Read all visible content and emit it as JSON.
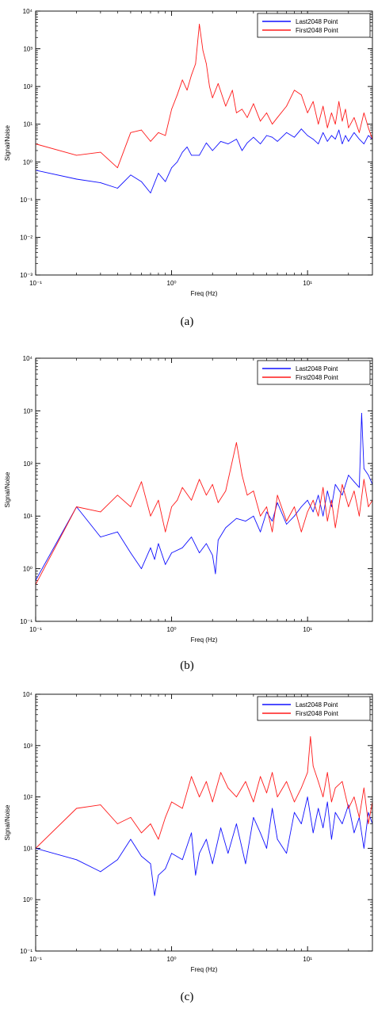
{
  "colors": {
    "series_1": "#1010ff",
    "series_2": "#ff1a1a",
    "axis": "#000000"
  },
  "panels": [
    {
      "caption": "(a)"
    },
    {
      "caption": "(b)"
    },
    {
      "caption": "(c)"
    }
  ],
  "chart_data": [
    {
      "type": "line",
      "xlabel": "Freq (Hz)",
      "ylabel": "Signal/Noise",
      "xscale": "log",
      "yscale": "log",
      "xlim": [
        0.1,
        30
      ],
      "ylim": [
        0.001,
        10000
      ],
      "xticks": [
        {
          "value": 0.1,
          "label": "10⁻¹"
        },
        {
          "value": 1,
          "label": "10⁰"
        },
        {
          "value": 10,
          "label": "10¹"
        }
      ],
      "yticks": [
        {
          "value": 0.001,
          "label": "10⁻³"
        },
        {
          "value": 0.01,
          "label": "10⁻²"
        },
        {
          "value": 0.1,
          "label": "10⁻¹"
        },
        {
          "value": 1,
          "label": "10⁰"
        },
        {
          "value": 10,
          "label": "10¹"
        },
        {
          "value": 100,
          "label": "10²"
        },
        {
          "value": 1000,
          "label": "10³"
        },
        {
          "value": 10000,
          "label": "10⁴"
        }
      ],
      "legend_position": "top-right",
      "series": [
        {
          "name": "Last2048  Point",
          "x": [
            0.1,
            0.2,
            0.3,
            0.4,
            0.5,
            0.6,
            0.7,
            0.8,
            0.9,
            1.0,
            1.1,
            1.2,
            1.3,
            1.4,
            1.6,
            1.8,
            2.0,
            2.3,
            2.6,
            3.0,
            3.3,
            3.6,
            4.0,
            4.5,
            5.0,
            5.5,
            6.0,
            7.0,
            8.0,
            9.0,
            10,
            11,
            12,
            13,
            14,
            15,
            16,
            17,
            18,
            19,
            20,
            22,
            24,
            26,
            28,
            30
          ],
          "y": [
            0.6,
            0.35,
            0.28,
            0.2,
            0.45,
            0.3,
            0.15,
            0.5,
            0.3,
            0.7,
            1.0,
            1.8,
            2.5,
            1.5,
            1.5,
            3.2,
            2.0,
            3.5,
            3.0,
            4.0,
            2.0,
            3.2,
            4.5,
            3.0,
            5.0,
            4.5,
            3.5,
            6.0,
            4.5,
            7.5,
            5.0,
            4.0,
            3.0,
            6.0,
            3.5,
            5.0,
            4.0,
            7.0,
            3.0,
            5.0,
            3.5,
            6.0,
            4.0,
            3.0,
            5.0,
            4.0
          ]
        },
        {
          "name": "First2048  Point",
          "x": [
            0.1,
            0.2,
            0.3,
            0.4,
            0.5,
            0.6,
            0.7,
            0.8,
            0.9,
            1.0,
            1.1,
            1.2,
            1.3,
            1.4,
            1.5,
            1.6,
            1.7,
            1.8,
            1.9,
            2.0,
            2.2,
            2.5,
            2.8,
            3.0,
            3.3,
            3.6,
            4.0,
            4.5,
            5.0,
            5.5,
            6.0,
            7.0,
            8.0,
            9.0,
            10,
            11,
            12,
            13,
            14,
            15,
            16,
            17,
            18,
            19,
            20,
            22,
            24,
            26,
            28,
            30
          ],
          "y": [
            3.0,
            1.5,
            1.8,
            0.7,
            6.0,
            7.0,
            3.5,
            6.0,
            5.0,
            25,
            60,
            150,
            80,
            200,
            400,
            4500,
            900,
            400,
            100,
            50,
            120,
            30,
            80,
            20,
            25,
            15,
            35,
            12,
            20,
            10,
            15,
            30,
            80,
            60,
            20,
            40,
            10,
            30,
            8,
            20,
            10,
            40,
            12,
            25,
            8,
            15,
            6,
            20,
            8,
            4
          ]
        }
      ]
    },
    {
      "type": "line",
      "xlabel": "Freq (Hz)",
      "ylabel": "Signal/Noise",
      "xscale": "log",
      "yscale": "log",
      "xlim": [
        0.1,
        30
      ],
      "ylim": [
        0.1,
        10000
      ],
      "xticks": [
        {
          "value": 0.1,
          "label": "10⁻¹"
        },
        {
          "value": 1,
          "label": "10⁰"
        },
        {
          "value": 10,
          "label": "10¹"
        }
      ],
      "yticks": [
        {
          "value": 0.1,
          "label": "10⁻¹"
        },
        {
          "value": 1,
          "label": "10⁰"
        },
        {
          "value": 10,
          "label": "10¹"
        },
        {
          "value": 100,
          "label": "10²"
        },
        {
          "value": 1000,
          "label": "10³"
        },
        {
          "value": 10000,
          "label": "10⁴"
        }
      ],
      "legend_position": "top-right",
      "series": [
        {
          "name": "Last2048  Point",
          "x": [
            0.1,
            0.2,
            0.3,
            0.4,
            0.5,
            0.6,
            0.7,
            0.75,
            0.8,
            0.9,
            1.0,
            1.2,
            1.4,
            1.6,
            1.8,
            2.0,
            2.1,
            2.2,
            2.5,
            3.0,
            3.5,
            4.0,
            4.5,
            5.0,
            5.5,
            6.0,
            7.0,
            8.0,
            9.0,
            10,
            11,
            12,
            13,
            14,
            15,
            16,
            18,
            20,
            22,
            24,
            25,
            26,
            28,
            30
          ],
          "y": [
            0.6,
            15,
            4,
            5,
            2,
            1,
            2.5,
            1.5,
            3,
            1.2,
            2,
            2.5,
            4,
            2,
            3,
            1.8,
            0.8,
            3.5,
            6,
            9,
            8,
            10,
            5,
            12,
            8,
            18,
            7,
            10,
            15,
            20,
            12,
            25,
            10,
            30,
            15,
            40,
            25,
            60,
            45,
            35,
            900,
            80,
            60,
            40
          ]
        },
        {
          "name": "First2048  Point",
          "x": [
            0.1,
            0.2,
            0.3,
            0.4,
            0.5,
            0.6,
            0.7,
            0.8,
            0.9,
            1.0,
            1.1,
            1.2,
            1.4,
            1.6,
            1.8,
            2.0,
            2.2,
            2.5,
            3.0,
            3.3,
            3.6,
            4.0,
            4.5,
            5.0,
            5.5,
            6.0,
            7.0,
            8.0,
            9.0,
            10,
            11,
            12,
            13,
            14,
            15,
            16,
            18,
            20,
            22,
            24,
            26,
            28,
            30
          ],
          "y": [
            0.5,
            15,
            12,
            25,
            15,
            45,
            10,
            20,
            5,
            15,
            20,
            35,
            20,
            50,
            25,
            40,
            18,
            30,
            250,
            60,
            25,
            30,
            10,
            15,
            5,
            25,
            8,
            15,
            5,
            12,
            20,
            10,
            35,
            8,
            20,
            6,
            40,
            15,
            30,
            10,
            50,
            15,
            20
          ]
        }
      ]
    },
    {
      "type": "line",
      "xlabel": "Freq (Hz)",
      "ylabel": "Signal/Noise",
      "xscale": "log",
      "yscale": "log",
      "xlim": [
        0.1,
        30
      ],
      "ylim": [
        0.1,
        10000
      ],
      "xticks": [
        {
          "value": 0.1,
          "label": "10⁻¹"
        },
        {
          "value": 1,
          "label": "10⁰"
        },
        {
          "value": 10,
          "label": "10¹"
        }
      ],
      "yticks": [
        {
          "value": 0.1,
          "label": "10⁻¹"
        },
        {
          "value": 1,
          "label": "10⁰"
        },
        {
          "value": 10,
          "label": "10¹"
        },
        {
          "value": 100,
          "label": "10²"
        },
        {
          "value": 1000,
          "label": "10³"
        },
        {
          "value": 10000,
          "label": "10⁴"
        }
      ],
      "legend_position": "top-right",
      "series": [
        {
          "name": "Last2048  Point",
          "x": [
            0.1,
            0.2,
            0.3,
            0.4,
            0.5,
            0.6,
            0.7,
            0.75,
            0.8,
            0.9,
            1.0,
            1.2,
            1.4,
            1.5,
            1.6,
            1.8,
            2.0,
            2.3,
            2.6,
            3.0,
            3.5,
            4.0,
            4.5,
            5.0,
            5.5,
            6.0,
            7.0,
            8.0,
            9.0,
            10,
            11,
            12,
            13,
            14,
            15,
            16,
            18,
            20,
            22,
            24,
            26,
            28,
            30
          ],
          "y": [
            10,
            6,
            3.5,
            6,
            15,
            7,
            5,
            1.2,
            3,
            4,
            8,
            6,
            20,
            3,
            8,
            15,
            5,
            25,
            8,
            30,
            5,
            40,
            20,
            10,
            60,
            15,
            8,
            50,
            30,
            100,
            20,
            60,
            25,
            80,
            15,
            50,
            30,
            70,
            20,
            40,
            10,
            50,
            30
          ]
        },
        {
          "name": "First2048  Point",
          "x": [
            0.1,
            0.2,
            0.3,
            0.4,
            0.5,
            0.6,
            0.7,
            0.8,
            0.9,
            1.0,
            1.2,
            1.4,
            1.6,
            1.8,
            2.0,
            2.3,
            2.6,
            3.0,
            3.5,
            4.0,
            4.5,
            5.0,
            5.5,
            6.0,
            7.0,
            8.0,
            9.0,
            10,
            10.5,
            11,
            12,
            13,
            14,
            15,
            16,
            18,
            20,
            22,
            24,
            26,
            28,
            30
          ],
          "y": [
            10,
            60,
            70,
            30,
            40,
            20,
            30,
            15,
            40,
            80,
            60,
            250,
            100,
            200,
            80,
            300,
            150,
            100,
            200,
            80,
            250,
            120,
            300,
            100,
            200,
            80,
            150,
            300,
            1500,
            400,
            200,
            100,
            300,
            80,
            150,
            200,
            60,
            100,
            40,
            150,
            30,
            80
          ]
        }
      ]
    }
  ]
}
